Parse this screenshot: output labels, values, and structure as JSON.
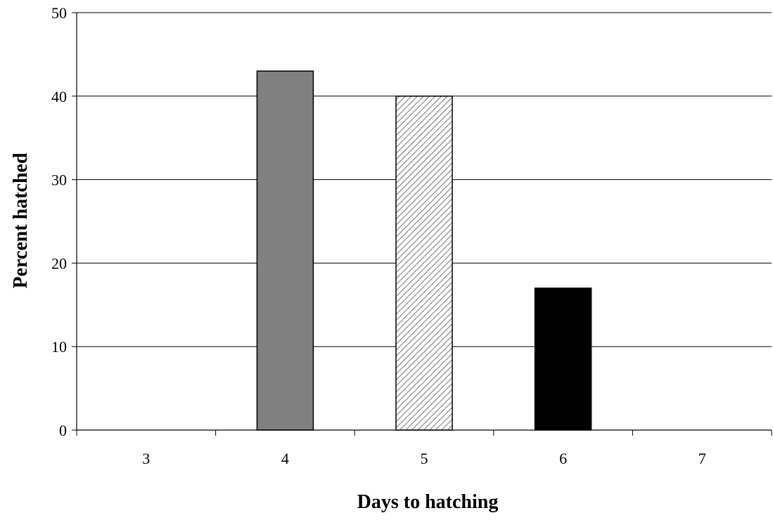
{
  "chart_data": {
    "type": "bar",
    "categories": [
      "3",
      "4",
      "5",
      "6",
      "7"
    ],
    "values": [
      0,
      43,
      40,
      17,
      0
    ],
    "bar_styles": [
      "none",
      "solid-gray",
      "diagonal-hatch",
      "solid-black",
      "none"
    ],
    "colors": {
      "gray": "#808080",
      "black": "#000000",
      "hatch": "#7f7f7f",
      "outline": "#000000",
      "grid": "#000000"
    },
    "title": "",
    "xlabel": "Days to hatching",
    "ylabel": "Percent hatched",
    "ylim": [
      0,
      50
    ],
    "yticks": [
      0,
      10,
      20,
      30,
      40,
      50
    ],
    "grid": true,
    "legend": "none"
  }
}
